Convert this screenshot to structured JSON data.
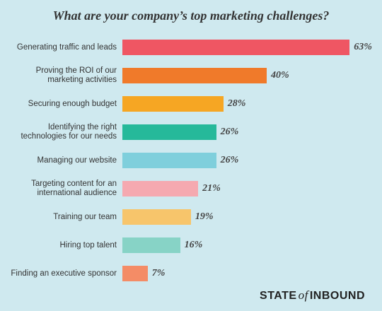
{
  "chart_data": {
    "type": "bar",
    "orientation": "horizontal",
    "title": "What are your company’s top marketing challenges?",
    "categories": [
      "Generating traffic and leads",
      "Proving the ROI of our marketing activities",
      "Securing enough budget",
      "Identifying the right technologies for our needs",
      "Managing our website",
      "Targeting content for an international audience",
      "Training our team",
      "Hiring top talent",
      "Finding an executive sponsor"
    ],
    "values": [
      63,
      40,
      28,
      26,
      26,
      21,
      19,
      16,
      7
    ],
    "value_labels": [
      "63%",
      "40%",
      "28%",
      "26%",
      "26%",
      "21%",
      "19%",
      "16%",
      "7%"
    ],
    "colors": [
      "#ef5663",
      "#f07a2a",
      "#f6a623",
      "#26b99a",
      "#7fcfdc",
      "#f5a9b0",
      "#f7c56b",
      "#87d3c6",
      "#f48c66"
    ],
    "brand": [
      "STATE",
      "of",
      "INBOUND"
    ]
  }
}
